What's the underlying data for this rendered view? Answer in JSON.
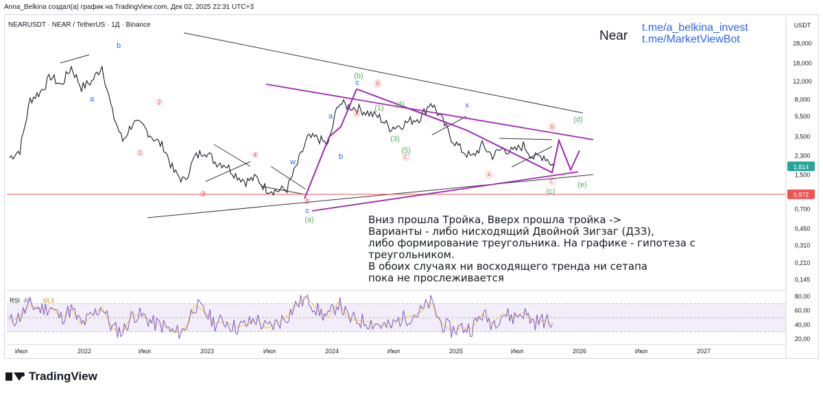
{
  "header": {
    "attribution": "Anna_Belkina создал(а) график на TradingView.com, Дек 02, 2025 22:31 UTC+3",
    "ticker": "NEARUSDT · NEAR / TetherUS · 1Д · Binance"
  },
  "overlay": {
    "symbol_label": "Near",
    "link1": "t.me/a_belkina_invest",
    "link2": "t.me/MarketViewBot",
    "annotation": "Вниз прошла Тройка, Вверх прошла тройка ->\nВарианты - либо нисходящий Двойной Зигзаг (ДЗЗ),\nлибо формирование треугольника. На графике - гипотеза с\nтреугольником.\nВ обоих случаях ни восходящего тренда ни сетапа\nпока не прослеживается"
  },
  "brand": {
    "name": "TradingView"
  },
  "colors": {
    "up": "#131722",
    "down": "#131722",
    "rsi_line": "#7e57c2",
    "rsi_ma": "#f7c948",
    "wave_purple": "#9c27b0",
    "last_price": "#26a69a",
    "level_line": "#ef5350"
  },
  "chart_data": {
    "type": "line",
    "title": "",
    "yaxis_unit": "USDT",
    "yscale": "log",
    "y_ticks": [
      "28,000",
      "18,000",
      "12,000",
      "8,000",
      "5,500",
      "3,500",
      "2,300",
      "1,500",
      "0,700",
      "0,450",
      "0,310",
      "0,210",
      "0,145"
    ],
    "y_tick_values": [
      28,
      18,
      12,
      8,
      5.5,
      3.5,
      2.3,
      1.5,
      0.7,
      0.45,
      0.31,
      0.21,
      0.145
    ],
    "x_ticks": [
      "Июл",
      "2022",
      "Июл",
      "2023",
      "Июл",
      "2024",
      "Июл",
      "2025",
      "Июл",
      "2026",
      "Июл",
      "2027"
    ],
    "last_price_label": "1,814",
    "last_price": 1.814,
    "level_label": "0,972",
    "level_price": 0.972,
    "series": [
      {
        "x": [
          "2021-07",
          "2021-08",
          "2021-09",
          "2021-10",
          "2021-11",
          "2021-12",
          "2022-01",
          "2022-02",
          "2022-03",
          "2022-04",
          "2022-05",
          "2022-06",
          "2022-07",
          "2022-08",
          "2022-09",
          "2022-10",
          "2022-11",
          "2022-12",
          "2023-01",
          "2023-02",
          "2023-03",
          "2023-04",
          "2023-05",
          "2023-06",
          "2023-07",
          "2023-08",
          "2023-09",
          "2023-10",
          "2023-11",
          "2023-12",
          "2024-01",
          "2024-02",
          "2024-03",
          "2024-04",
          "2024-05",
          "2024-06",
          "2024-07",
          "2024-08",
          "2024-09",
          "2024-10",
          "2024-11",
          "2024-12",
          "2025-01",
          "2025-02",
          "2025-03",
          "2025-04",
          "2025-05",
          "2025-06",
          "2025-07",
          "2025-08",
          "2025-09",
          "2025-10",
          "2025-11",
          "2025-12"
        ],
        "values": [
          2.2,
          2.6,
          8.0,
          9.5,
          13.5,
          11.0,
          16.5,
          10.5,
          12.0,
          17.0,
          6.0,
          3.2,
          4.8,
          4.4,
          3.4,
          2.8,
          1.6,
          1.3,
          2.2,
          2.6,
          2.0,
          1.9,
          1.5,
          1.3,
          1.4,
          1.1,
          1.05,
          1.1,
          1.9,
          3.4,
          3.4,
          2.9,
          7.5,
          6.9,
          6.5,
          5.9,
          5.4,
          4.3,
          4.5,
          5.0,
          5.4,
          7.6,
          5.3,
          3.4,
          2.6,
          2.2,
          2.9,
          2.3,
          2.7,
          2.5,
          2.9,
          2.2,
          2.3,
          1.814
        ]
      }
    ],
    "rsi": {
      "label": "RSI",
      "value_label": "40,",
      "ma_label": "48,5",
      "y_ticks": [
        "80,00",
        "60,00",
        "40,00",
        "20,00"
      ],
      "y_tick_values": [
        80,
        60,
        40,
        20
      ],
      "values": [
        44,
        52,
        68,
        62,
        65,
        50,
        62,
        40,
        52,
        66,
        35,
        30,
        55,
        52,
        42,
        38,
        28,
        32,
        68,
        58,
        42,
        45,
        36,
        40,
        48,
        35,
        42,
        52,
        70,
        78,
        60,
        50,
        72,
        48,
        46,
        44,
        40,
        36,
        48,
        52,
        58,
        72,
        42,
        32,
        36,
        35,
        55,
        42,
        56,
        50,
        58,
        44,
        46,
        40
      ]
    },
    "wave_labels": [
      {
        "text": "b",
        "color": "#2962ff"
      },
      {
        "text": "a",
        "color": "#2962ff"
      },
      {
        "text": "②",
        "color": "#ef5350"
      },
      {
        "text": "①",
        "color": "#ef5350"
      },
      {
        "text": "④",
        "color": "#ef5350"
      },
      {
        "text": "③",
        "color": "#ef5350"
      },
      {
        "text": "w",
        "color": "#2962ff"
      },
      {
        "text": "⑤",
        "color": "#ef5350"
      },
      {
        "text": "c",
        "color": "#2962ff"
      },
      {
        "text": "(a)",
        "color": "#4caf50"
      },
      {
        "text": "a",
        "color": "#2962ff"
      },
      {
        "text": "b",
        "color": "#2962ff"
      },
      {
        "text": "(b)",
        "color": "#4caf50"
      },
      {
        "text": "c",
        "color": "#2962ff"
      },
      {
        "text": "Ⓐ",
        "color": "#ef5350"
      },
      {
        "text": "Ⓑ",
        "color": "#ef5350"
      },
      {
        "text": "(1)",
        "color": "#4caf50"
      },
      {
        "text": "(3)",
        "color": "#4caf50"
      },
      {
        "text": "(4)",
        "color": "#4caf50"
      },
      {
        "text": "(5)",
        "color": "#4caf50"
      },
      {
        "text": "Ⓒ",
        "color": "#ef5350"
      },
      {
        "text": "x",
        "color": "#2962ff"
      },
      {
        "text": "Ⓐ",
        "color": "#ef5350"
      },
      {
        "text": "Ⓑ",
        "color": "#ef5350"
      },
      {
        "text": "Ⓒ",
        "color": "#ef5350"
      },
      {
        "text": "(c)",
        "color": "#4caf50"
      },
      {
        "text": "(d)",
        "color": "#4caf50"
      },
      {
        "text": "(e)",
        "color": "#4caf50"
      }
    ]
  }
}
